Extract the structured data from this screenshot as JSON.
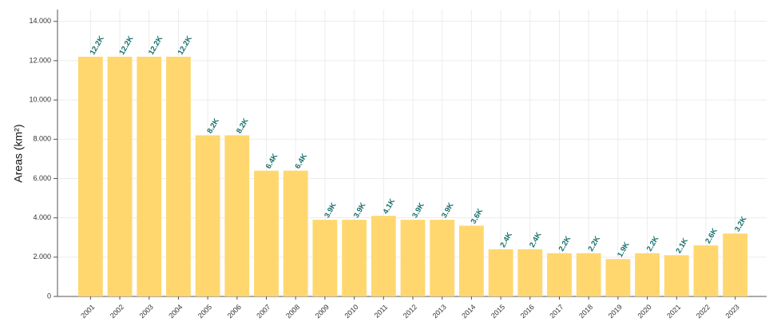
{
  "chart_data": {
    "type": "bar",
    "y_label": "Areas (km²)",
    "categories": [
      "2001",
      "2002",
      "2003",
      "2004",
      "2005",
      "2006",
      "2007",
      "2008",
      "2009",
      "2010",
      "2011",
      "2012",
      "2013",
      "2014",
      "2015",
      "2016",
      "2017",
      "2018",
      "2019",
      "2020",
      "2021",
      "2022",
      "2023"
    ],
    "values": [
      12200,
      12200,
      12200,
      12200,
      8200,
      8200,
      6400,
      6400,
      3900,
      3900,
      4100,
      3900,
      3900,
      3600,
      2400,
      2400,
      2200,
      2200,
      1900,
      2200,
      2100,
      2600,
      3200
    ],
    "value_labels": [
      "12.2K",
      "12.2K",
      "12.2K",
      "12.2K",
      "8.2K",
      "8.2K",
      "6.4K",
      "6.4K",
      "3.9K",
      "3.9K",
      "4.1K",
      "3.9K",
      "3.9K",
      "3.6K",
      "2.4K",
      "2.4K",
      "2.2K",
      "2.2K",
      "1.9K",
      "2.2K",
      "2.1K",
      "2.6K",
      "3.2K"
    ],
    "color": "#ffd76e",
    "ylim": [
      0,
      14600
    ],
    "yticks": [
      0,
      {
        "value": 2000,
        "label": "2.000"
      },
      {
        "value": 4000,
        "label": "4.000"
      },
      {
        "value": 6000,
        "label": "6.000"
      },
      {
        "value": 8000,
        "label": "8.000"
      },
      {
        "value": 10000,
        "label": "10.000"
      },
      {
        "value": 12000,
        "label": "12.000"
      },
      {
        "value": 14000,
        "label": "14.000"
      }
    ],
    "grid": true
  }
}
